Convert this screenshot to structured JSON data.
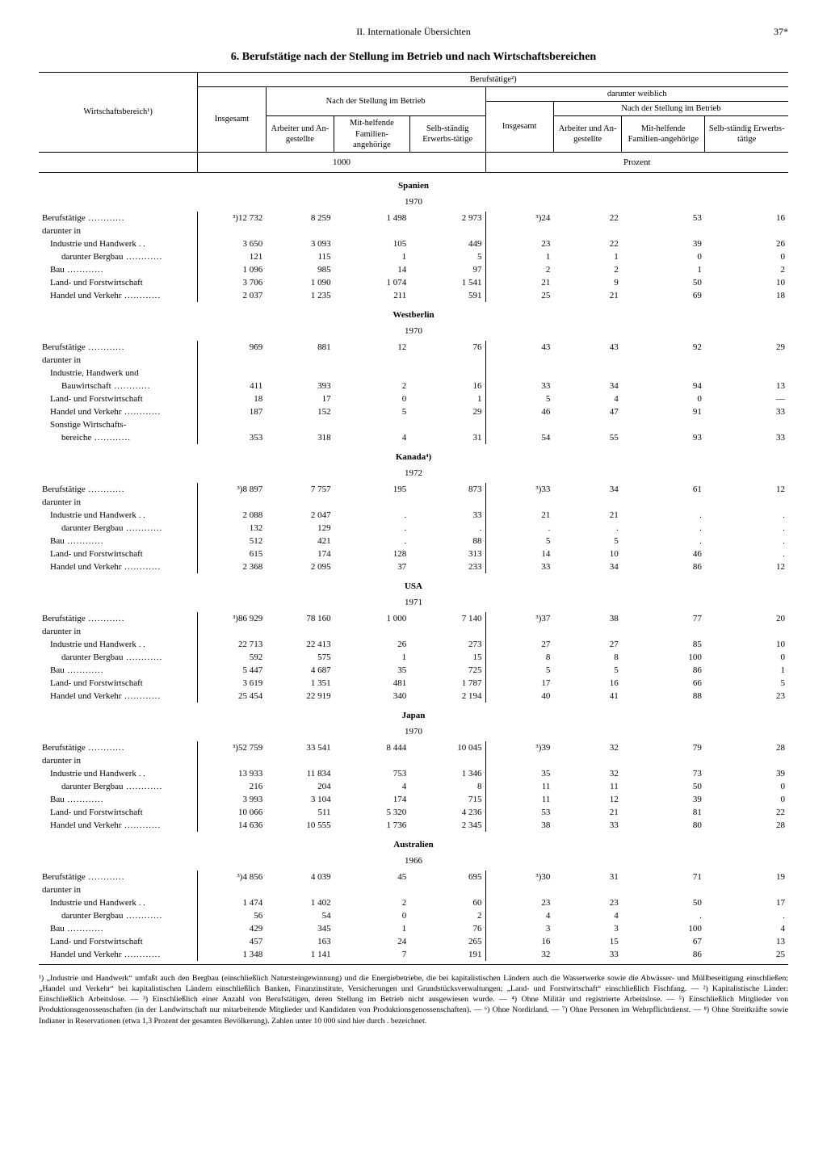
{
  "page": {
    "running_head": "II. Internationale Übersichten",
    "page_number": "37*",
    "title": "6. Berufstätige nach der Stellung im Betrieb und nach Wirtschaftsbereichen"
  },
  "headers": {
    "wirtschaftsbereich": "Wirtschaftsbereich¹)",
    "berufstaetige": "Berufstätige²)",
    "insgesamt": "Insgesamt",
    "nach_stellung": "Nach der Stellung im Betrieb",
    "darunter_weiblich": "darunter weiblich",
    "arbeiter": "Arbeiter und An-gestellte",
    "mithelfende": "Mit-helfende Familien-angehörige",
    "selbstaendig": "Selb-ständig Erwerbs-tätige",
    "unit_1000": "1000",
    "unit_prozent": "Prozent"
  },
  "row_labels": {
    "berufstaetige": "Berufstätige",
    "darunter_in": "darunter in",
    "industrie": "Industrie und Handwerk . .",
    "bergbau": "darunter Bergbau",
    "bau": "Bau",
    "land_forst": "Land- und Forstwirtschaft",
    "handel": "Handel und Verkehr",
    "industrie_bau": "Industrie, Handwerk und",
    "bauwirtschaft": "Bauwirtschaft",
    "sonstige_wb": "Sonstige Wirtschafts-",
    "bereiche": "bereiche"
  },
  "sections": [
    {
      "name": "Spanien",
      "year": "1970",
      "rows": [
        {
          "lbl": "berufstaetige",
          "vals": [
            "³)12 732",
            "8 259",
            "1 498",
            "2 973",
            "³)24",
            "22",
            "53",
            "16"
          ]
        },
        {
          "lbl": "darunter_in"
        },
        {
          "lbl": "industrie",
          "indent": 1,
          "vals": [
            "3 650",
            "3 093",
            "105",
            "449",
            "23",
            "22",
            "39",
            "26"
          ]
        },
        {
          "lbl": "bergbau",
          "indent": 2,
          "vals": [
            "121",
            "115",
            "1",
            "5",
            "1",
            "1",
            "0",
            "0"
          ]
        },
        {
          "lbl": "bau",
          "indent": 1,
          "vals": [
            "1 096",
            "985",
            "14",
            "97",
            "2",
            "2",
            "1",
            "2"
          ]
        },
        {
          "lbl": "land_forst",
          "indent": 1,
          "vals": [
            "3 706",
            "1 090",
            "1 074",
            "1 541",
            "21",
            "9",
            "50",
            "10"
          ]
        },
        {
          "lbl": "handel",
          "indent": 1,
          "vals": [
            "2 037",
            "1 235",
            "211",
            "591",
            "25",
            "21",
            "69",
            "18"
          ]
        }
      ]
    },
    {
      "name": "Westberlin",
      "year": "1970",
      "rows": [
        {
          "lbl": "berufstaetige",
          "vals": [
            "969",
            "881",
            "12",
            "76",
            "43",
            "43",
            "92",
            "29"
          ]
        },
        {
          "lbl": "darunter_in"
        },
        {
          "lbl": "industrie_bau",
          "indent": 1
        },
        {
          "lbl": "bauwirtschaft",
          "indent": 2,
          "vals": [
            "411",
            "393",
            "2",
            "16",
            "33",
            "34",
            "94",
            "13"
          ]
        },
        {
          "lbl": "land_forst",
          "indent": 1,
          "vals": [
            "18",
            "17",
            "0",
            "1",
            "5",
            "4",
            "0",
            "—"
          ]
        },
        {
          "lbl": "handel",
          "indent": 1,
          "vals": [
            "187",
            "152",
            "5",
            "29",
            "46",
            "47",
            "91",
            "33"
          ]
        },
        {
          "lbl": "sonstige_wb",
          "indent": 1
        },
        {
          "lbl": "bereiche",
          "indent": 2,
          "vals": [
            "353",
            "318",
            "4",
            "31",
            "54",
            "55",
            "93",
            "33"
          ]
        }
      ]
    },
    {
      "name": "Kanada⁴)",
      "year": "1972",
      "rows": [
        {
          "lbl": "berufstaetige",
          "vals": [
            "³)8 897",
            "7 757",
            "195",
            "873",
            "³)33",
            "34",
            "61",
            "12"
          ]
        },
        {
          "lbl": "darunter_in"
        },
        {
          "lbl": "industrie",
          "indent": 1,
          "vals": [
            "2 088",
            "2 047",
            ".",
            "33",
            "21",
            "21",
            ".",
            "."
          ]
        },
        {
          "lbl": "bergbau",
          "indent": 2,
          "vals": [
            "132",
            "129",
            ".",
            ".",
            ".",
            ".",
            ".",
            "."
          ]
        },
        {
          "lbl": "bau",
          "indent": 1,
          "vals": [
            "512",
            "421",
            ".",
            "88",
            "5",
            "5",
            ".",
            "."
          ]
        },
        {
          "lbl": "land_forst",
          "indent": 1,
          "vals": [
            "615",
            "174",
            "128",
            "313",
            "14",
            "10",
            "46",
            "."
          ]
        },
        {
          "lbl": "handel",
          "indent": 1,
          "vals": [
            "2 368",
            "2 095",
            "37",
            "233",
            "33",
            "34",
            "86",
            "12"
          ]
        }
      ]
    },
    {
      "name": "USA",
      "year": "1971",
      "rows": [
        {
          "lbl": "berufstaetige",
          "vals": [
            "³)86 929",
            "78 160",
            "1 000",
            "7 140",
            "³)37",
            "38",
            "77",
            "20"
          ]
        },
        {
          "lbl": "darunter_in"
        },
        {
          "lbl": "industrie",
          "indent": 1,
          "vals": [
            "22 713",
            "22 413",
            "26",
            "273",
            "27",
            "27",
            "85",
            "10"
          ]
        },
        {
          "lbl": "bergbau",
          "indent": 2,
          "vals": [
            "592",
            "575",
            "1",
            "15",
            "8",
            "8",
            "100",
            "0"
          ]
        },
        {
          "lbl": "bau",
          "indent": 1,
          "vals": [
            "5 447",
            "4 687",
            "35",
            "725",
            "5",
            "5",
            "86",
            "1"
          ]
        },
        {
          "lbl": "land_forst",
          "indent": 1,
          "vals": [
            "3 619",
            "1 351",
            "481",
            "1 787",
            "17",
            "16",
            "66",
            "5"
          ]
        },
        {
          "lbl": "handel",
          "indent": 1,
          "vals": [
            "25 454",
            "22 919",
            "340",
            "2 194",
            "40",
            "41",
            "88",
            "23"
          ]
        }
      ]
    },
    {
      "name": "Japan",
      "year": "1970",
      "rows": [
        {
          "lbl": "berufstaetige",
          "vals": [
            "³)52 759",
            "33 541",
            "8 444",
            "10 045",
            "³)39",
            "32",
            "79",
            "28"
          ]
        },
        {
          "lbl": "darunter_in"
        },
        {
          "lbl": "industrie",
          "indent": 1,
          "vals": [
            "13 933",
            "11 834",
            "753",
            "1 346",
            "35",
            "32",
            "73",
            "39"
          ]
        },
        {
          "lbl": "bergbau",
          "indent": 2,
          "vals": [
            "216",
            "204",
            "4",
            "8",
            "11",
            "11",
            "50",
            "0"
          ]
        },
        {
          "lbl": "bau",
          "indent": 1,
          "vals": [
            "3 993",
            "3 104",
            "174",
            "715",
            "11",
            "12",
            "39",
            "0"
          ]
        },
        {
          "lbl": "land_forst",
          "indent": 1,
          "vals": [
            "10 066",
            "511",
            "5 320",
            "4 236",
            "53",
            "21",
            "81",
            "22"
          ]
        },
        {
          "lbl": "handel",
          "indent": 1,
          "vals": [
            "14 636",
            "10 555",
            "1 736",
            "2 345",
            "38",
            "33",
            "80",
            "28"
          ]
        }
      ]
    },
    {
      "name": "Australien",
      "year": "1966",
      "rows": [
        {
          "lbl": "berufstaetige",
          "vals": [
            "³)4 856",
            "4 039",
            "45",
            "695",
            "³)30",
            "31",
            "71",
            "19"
          ]
        },
        {
          "lbl": "darunter_in"
        },
        {
          "lbl": "industrie",
          "indent": 1,
          "vals": [
            "1 474",
            "1 402",
            "2",
            "60",
            "23",
            "23",
            "50",
            "17"
          ]
        },
        {
          "lbl": "bergbau",
          "indent": 2,
          "vals": [
            "56",
            "54",
            "0",
            "2",
            "4",
            "4",
            ".",
            "."
          ]
        },
        {
          "lbl": "bau",
          "indent": 1,
          "vals": [
            "429",
            "345",
            "1",
            "76",
            "3",
            "3",
            "100",
            "4"
          ]
        },
        {
          "lbl": "land_forst",
          "indent": 1,
          "vals": [
            "457",
            "163",
            "24",
            "265",
            "16",
            "15",
            "67",
            "13"
          ]
        },
        {
          "lbl": "handel",
          "indent": 1,
          "vals": [
            "1 348",
            "1 141",
            "7",
            "191",
            "32",
            "33",
            "86",
            "25"
          ]
        }
      ]
    }
  ],
  "footnotes": "¹) „Industrie und Handwerk“ umfaßt auch den Bergbau (einschließlich Natursteingewinnung) und die Energiebetriebe, die bei kapitalistischen Ländern auch die Wasserwerke sowie die Abwässer- und Müllbeseitigung einschließen; „Handel und Verkehr“ bei kapitalistischen Ländern einschließlich Banken, Finanzinstitute, Versicherungen und Grundstücksverwaltungen; „Land- und Forstwirtschaft“ einschließlich Fischfang. — ²) Kapitalistische Länder: Einschließlich Arbeitslose. — ³) Einschließlich einer Anzahl von Berufstätigen, deren Stellung im Betrieb nicht ausgewiesen wurde. — ⁴) Ohne Militär und registrierte Arbeitslose. — ⁵) Einschließlich Mitglieder von Produktionsgenossenschaften (in der Landwirtschaft nur mitarbeitende Mitglieder und Kandidaten von Produktionsgenossenschaften). — ⁶) Ohne Nordirland. — ⁷) Ohne Personen im Wehrpflichtdienst. — ⁸) Ohne Streitkräfte sowie Indianer in Reservationen (etwa 1,3 Prozent der gesamten Bevölkerung). Zahlen unter 10 000 sind hier durch . bezeichnet."
}
